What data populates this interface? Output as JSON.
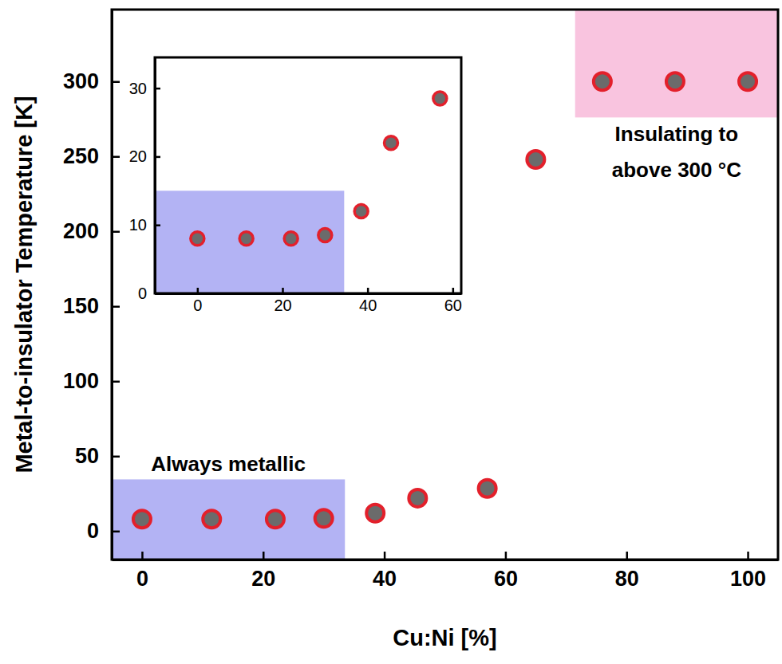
{
  "chart_data": [
    {
      "type": "scatter",
      "x_label": "Cu:Ni [%]",
      "y_label": "Metal-to-insulator Temperature [K]",
      "x": [
        0,
        11.5,
        22,
        30,
        38.5,
        45.5,
        57,
        65,
        76,
        88,
        100
      ],
      "values": [
        8,
        8,
        8,
        8.5,
        12,
        22,
        28.5,
        248,
        300,
        300,
        300
      ],
      "color": "#6b6b6b",
      "marker": "circle",
      "xlim": [
        -5,
        105
      ],
      "ylim": [
        -19,
        348
      ],
      "xticks": [
        0,
        20,
        40,
        60,
        80,
        100
      ],
      "yticks": [
        0,
        50,
        100,
        150,
        200,
        250,
        300
      ],
      "grid": false,
      "regions": [
        {
          "x": [
            -5,
            33.5
          ],
          "y": [
            -19,
            34.5
          ],
          "color": "#b3b3f4",
          "label": [
            "Always metallic"
          ]
        },
        {
          "x": [
            71.5,
            105
          ],
          "y": [
            276,
            348
          ],
          "color": "#f9c4df",
          "label": [
            "Insulating to",
            "above 300 °C"
          ]
        }
      ]
    },
    {
      "type": "scatter",
      "x": [
        0,
        11.5,
        22,
        30,
        38.5,
        45.5,
        57
      ],
      "values": [
        8,
        8,
        8,
        8.5,
        12,
        22,
        28.5
      ],
      "color": "#6b6b6b",
      "marker": "circle",
      "xlim": [
        -10,
        62
      ],
      "ylim": [
        0,
        34.5
      ],
      "xticks": [
        0,
        20,
        40,
        60
      ],
      "yticks": [
        0,
        10,
        20,
        30
      ],
      "grid": false,
      "regions": [
        {
          "x": [
            -10,
            34.5
          ],
          "y": [
            0,
            15
          ],
          "color": "#b3b3f4"
        }
      ]
    }
  ]
}
